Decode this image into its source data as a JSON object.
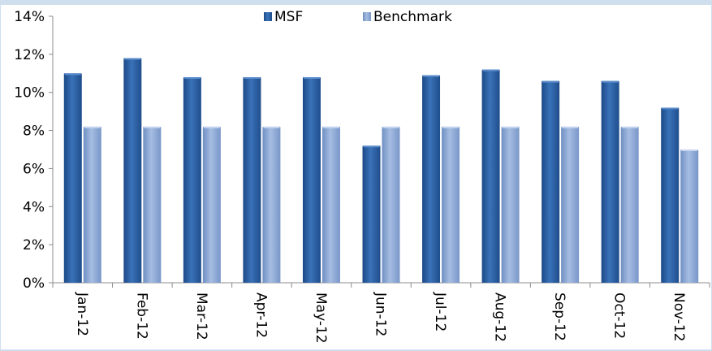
{
  "chart_data": {
    "type": "bar",
    "categories": [
      "Jan-12",
      "Feb-12",
      "Mar-12",
      "Apr-12",
      "May-12",
      "Jun-12",
      "Jul-12",
      "Aug-12",
      "Sep-12",
      "Oct-12",
      "Nov-12"
    ],
    "series": [
      {
        "name": "MSF",
        "values": [
          11.0,
          11.8,
          10.8,
          10.8,
          10.8,
          7.2,
          10.9,
          11.2,
          10.6,
          10.6,
          9.2
        ],
        "color": "#2d64a8"
      },
      {
        "name": "Benchmark",
        "values": [
          8.2,
          8.2,
          8.2,
          8.2,
          8.2,
          8.2,
          8.2,
          8.2,
          8.2,
          8.2,
          7.0
        ],
        "color": "#8aa9d6"
      }
    ],
    "ylim": [
      0,
      14
    ],
    "yticks": [
      "0%",
      "2%",
      "4%",
      "6%",
      "8%",
      "10%",
      "12%",
      "14%"
    ],
    "title": "",
    "xlabel": "",
    "ylabel": "",
    "legend": "top-center",
    "grid": false
  }
}
